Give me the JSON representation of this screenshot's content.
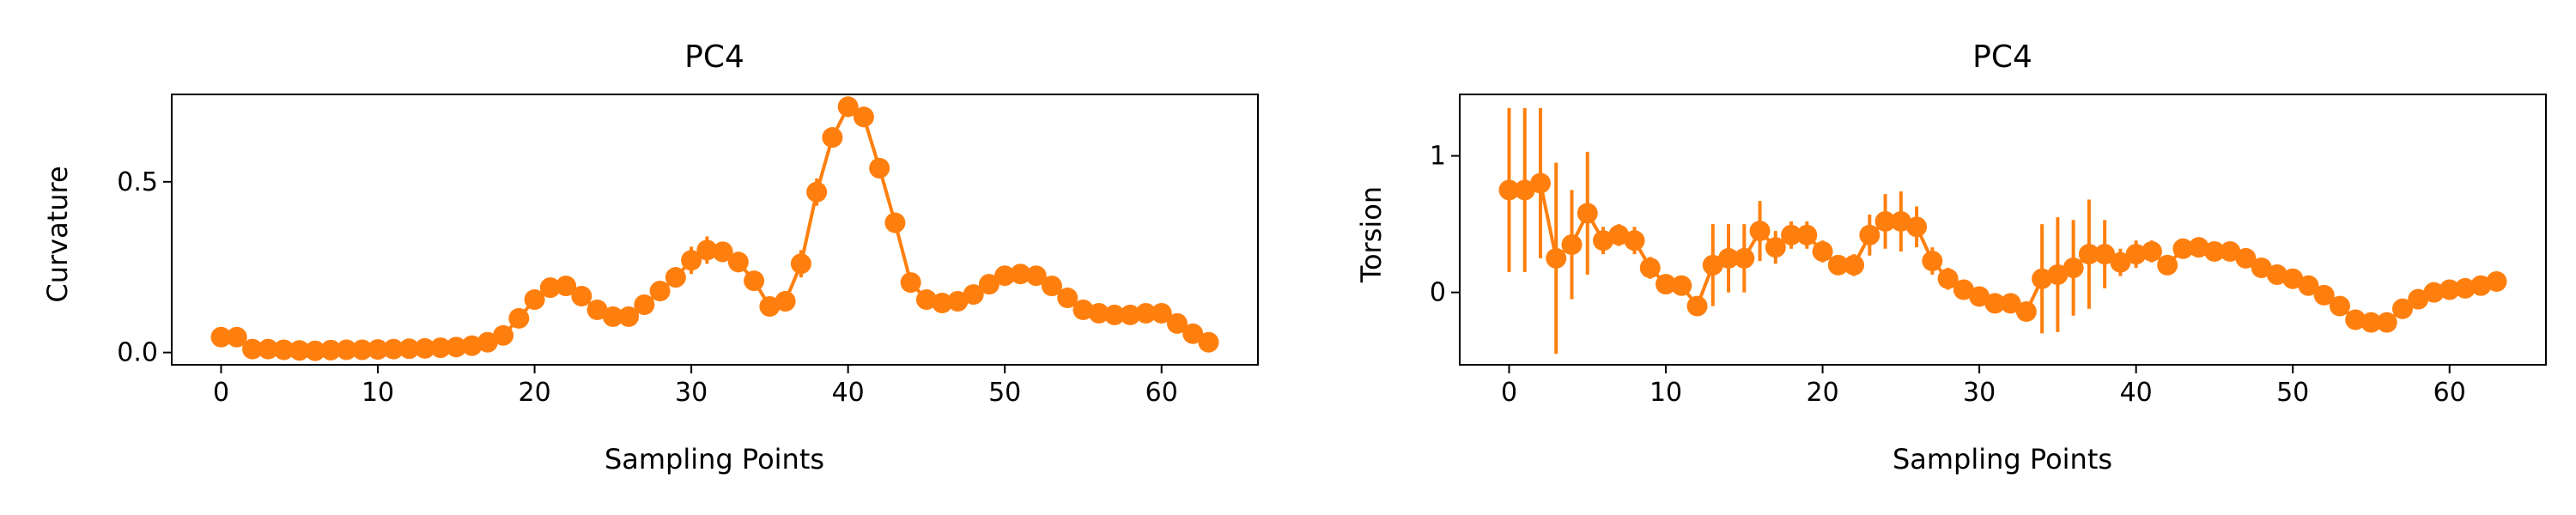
{
  "chart_data": [
    {
      "type": "line",
      "title": "PC4",
      "xlabel": "Sampling Points",
      "ylabel": "Curvature",
      "xlim": [
        -3.15,
        66.15
      ],
      "ylim": [
        -0.036,
        0.756
      ],
      "xticks": [
        0,
        10,
        20,
        30,
        40,
        50,
        60
      ],
      "xtick_labels": [
        "0",
        "10",
        "20",
        "30",
        "40",
        "50",
        "60"
      ],
      "yticks": [
        0.0,
        0.5
      ],
      "ytick_labels": [
        "0.0",
        "0.5"
      ],
      "grid": false,
      "legend": "none",
      "color": "#ff7f0e",
      "marker": "circle",
      "error_bars": true,
      "series": [
        {
          "x": [
            0,
            1,
            2,
            3,
            4,
            5,
            6,
            7,
            8,
            9,
            10,
            11,
            12,
            13,
            14,
            15,
            16,
            17,
            18,
            19,
            20,
            21,
            22,
            23,
            24,
            25,
            26,
            27,
            28,
            29,
            30,
            31,
            32,
            33,
            34,
            35,
            36,
            37,
            38,
            39,
            40,
            41,
            42,
            43,
            44,
            45,
            46,
            47,
            48,
            49,
            50,
            51,
            52,
            53,
            54,
            55,
            56,
            57,
            58,
            59,
            60,
            61,
            62,
            63
          ],
          "y": [
            0.045,
            0.045,
            0.01,
            0.01,
            0.008,
            0.006,
            0.005,
            0.007,
            0.008,
            0.008,
            0.009,
            0.01,
            0.011,
            0.012,
            0.014,
            0.016,
            0.02,
            0.03,
            0.05,
            0.1,
            0.155,
            0.19,
            0.195,
            0.165,
            0.125,
            0.105,
            0.105,
            0.14,
            0.18,
            0.22,
            0.27,
            0.3,
            0.295,
            0.265,
            0.21,
            0.135,
            0.15,
            0.26,
            0.47,
            0.63,
            0.72,
            0.69,
            0.54,
            0.38,
            0.205,
            0.155,
            0.145,
            0.15,
            0.17,
            0.2,
            0.225,
            0.23,
            0.225,
            0.195,
            0.16,
            0.125,
            0.115,
            0.11,
            0.11,
            0.115,
            0.115,
            0.085,
            0.055,
            0.03
          ],
          "err": [
            0.01,
            0.01,
            0.008,
            0.006,
            0.005,
            0.005,
            0.005,
            0.005,
            0.005,
            0.005,
            0.005,
            0.005,
            0.005,
            0.005,
            0.005,
            0.006,
            0.007,
            0.008,
            0.01,
            0.015,
            0.02,
            0.02,
            0.02,
            0.02,
            0.02,
            0.02,
            0.02,
            0.02,
            0.03,
            0.03,
            0.04,
            0.04,
            0.03,
            0.03,
            0.025,
            0.02,
            0.03,
            0.04,
            0.04,
            0.03,
            0.03,
            0.03,
            0.03,
            0.02,
            0.02,
            0.015,
            0.015,
            0.015,
            0.02,
            0.02,
            0.02,
            0.02,
            0.02,
            0.02,
            0.015,
            0.01,
            0.01,
            0.01,
            0.01,
            0.01,
            0.01,
            0.01,
            0.01,
            0.01
          ]
        }
      ]
    },
    {
      "type": "line",
      "title": "PC4",
      "xlabel": "Sampling Points",
      "ylabel": "Torsion",
      "xlim": [
        -3.15,
        66.15
      ],
      "ylim": [
        -0.53,
        1.45
      ],
      "xticks": [
        0,
        10,
        20,
        30,
        40,
        50,
        60
      ],
      "xtick_labels": [
        "0",
        "10",
        "20",
        "30",
        "40",
        "50",
        "60"
      ],
      "yticks": [
        0,
        1
      ],
      "ytick_labels": [
        "0",
        "1"
      ],
      "grid": false,
      "legend": "none",
      "color": "#ff7f0e",
      "marker": "circle",
      "error_bars": true,
      "series": [
        {
          "x": [
            0,
            1,
            2,
            3,
            4,
            5,
            6,
            7,
            8,
            9,
            10,
            11,
            12,
            13,
            14,
            15,
            16,
            17,
            18,
            19,
            20,
            21,
            22,
            23,
            24,
            25,
            26,
            27,
            28,
            29,
            30,
            31,
            32,
            33,
            34,
            35,
            36,
            37,
            38,
            39,
            40,
            41,
            42,
            43,
            44,
            45,
            46,
            47,
            48,
            49,
            50,
            51,
            52,
            53,
            54,
            55,
            56,
            57,
            58,
            59,
            60,
            61,
            62,
            63
          ],
          "y": [
            0.75,
            0.75,
            0.8,
            0.25,
            0.35,
            0.58,
            0.38,
            0.42,
            0.38,
            0.18,
            0.06,
            0.05,
            -0.1,
            0.2,
            0.25,
            0.25,
            0.45,
            0.33,
            0.42,
            0.42,
            0.3,
            0.2,
            0.2,
            0.42,
            0.52,
            0.52,
            0.48,
            0.23,
            0.1,
            0.02,
            -0.03,
            -0.08,
            -0.08,
            -0.14,
            0.1,
            0.13,
            0.18,
            0.28,
            0.28,
            0.22,
            0.28,
            0.3,
            0.2,
            0.32,
            0.33,
            0.3,
            0.3,
            0.25,
            0.18,
            0.13,
            0.1,
            0.05,
            -0.02,
            -0.1,
            -0.2,
            -0.22,
            -0.22,
            -0.12,
            -0.05,
            0.0,
            0.02,
            0.03,
            0.05,
            0.08
          ],
          "err": [
            0.6,
            0.6,
            0.55,
            0.7,
            0.4,
            0.45,
            0.1,
            0.08,
            0.1,
            0.08,
            0.07,
            0.06,
            0.07,
            0.3,
            0.25,
            0.25,
            0.22,
            0.12,
            0.1,
            0.1,
            0.08,
            0.07,
            0.08,
            0.15,
            0.2,
            0.22,
            0.15,
            0.1,
            0.08,
            0.06,
            0.05,
            0.05,
            0.04,
            0.05,
            0.4,
            0.42,
            0.35,
            0.4,
            0.25,
            0.1,
            0.1,
            0.08,
            0.06,
            0.05,
            0.05,
            0.05,
            0.04,
            0.04,
            0.05,
            0.04,
            0.04,
            0.04,
            0.03,
            0.03,
            0.04,
            0.04,
            0.04,
            0.04,
            0.04,
            0.03,
            0.03,
            0.03,
            0.03,
            0.03
          ]
        }
      ]
    }
  ]
}
